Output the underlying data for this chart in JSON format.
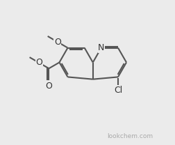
{
  "bg": "#ebebeb",
  "bond_color": "#555555",
  "atom_color": "#333333",
  "lw": 1.5,
  "fs": 9.0,
  "bl": 1.0,
  "watermark": "lookchem.com",
  "wm_color": "#aaaaaa",
  "wm_fs": 6.5,
  "c4a": [
    5.3,
    3.85
  ],
  "c8a": [
    5.3,
    4.85
  ],
  "xlim": [
    0,
    10
  ],
  "ylim": [
    0,
    8.5
  ],
  "figsize": [
    2.53,
    2.08
  ],
  "dpi": 100
}
